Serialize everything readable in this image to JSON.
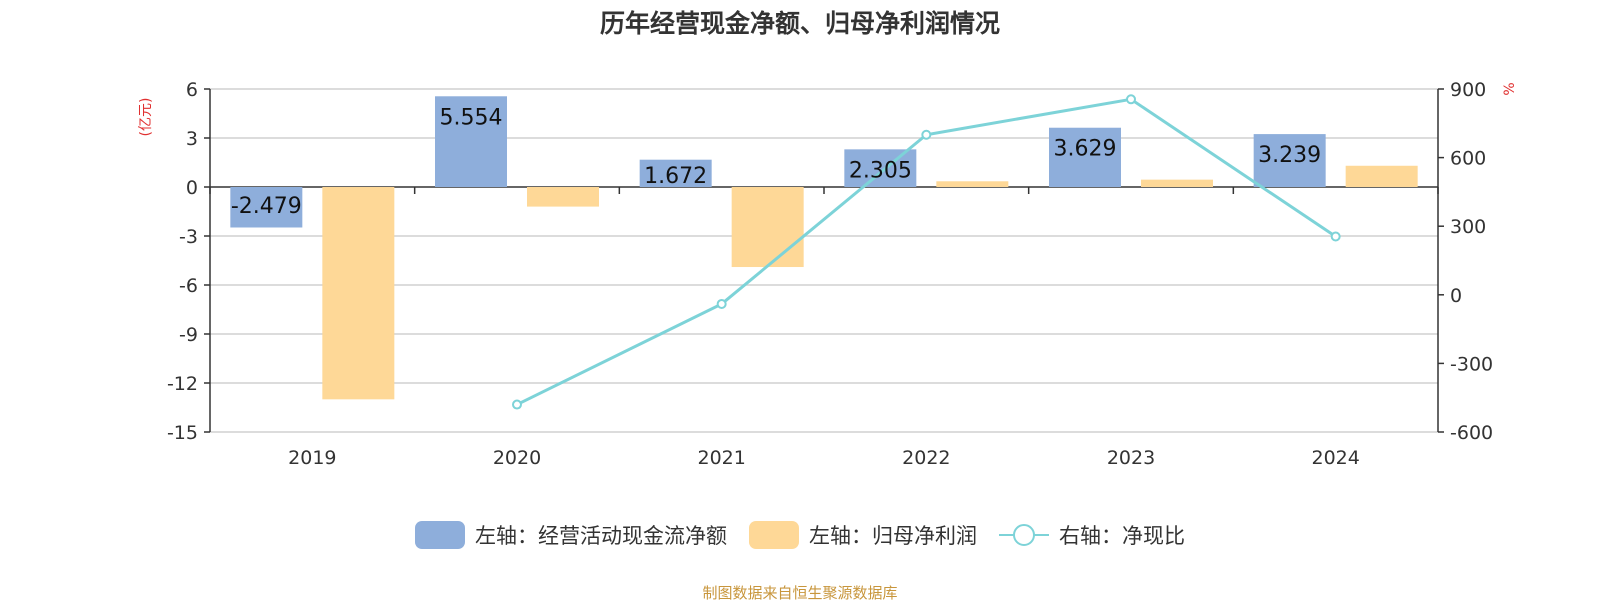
{
  "title": "历年经营现金净额、归母净利润情况",
  "source": "制图数据来自恒生聚源数据库",
  "colors": {
    "cash": "#8eaedb",
    "profit": "#fed897",
    "ratio": "#7dd3d8",
    "unit": "#e03030"
  },
  "legend": {
    "cash": "左轴：经营活动现金流净额",
    "profit": "左轴：归母净利润",
    "ratio": "右轴：净现比"
  },
  "chart_data": {
    "type": "bar",
    "categories": [
      "2019",
      "2020",
      "2021",
      "2022",
      "2023",
      "2024"
    ],
    "left_axis": {
      "unit": "(亿元)",
      "ylim": [
        -15,
        6
      ],
      "ticks": [
        6,
        3,
        0,
        -3,
        -6,
        -9,
        -12,
        -15
      ]
    },
    "right_axis": {
      "unit": "%",
      "ylim": [
        -600,
        900
      ],
      "ticks": [
        900,
        600,
        300,
        0,
        -300,
        -600
      ]
    },
    "series": [
      {
        "name": "左轴：经营活动现金流净额",
        "type": "bar",
        "axis": "left",
        "values": [
          -2.479,
          5.554,
          1.672,
          2.305,
          3.629,
          3.239
        ],
        "labels": [
          "-2.479",
          "5.554",
          "1.672",
          "2.305",
          "3.629",
          "3.239"
        ]
      },
      {
        "name": "左轴：归母净利润",
        "type": "bar",
        "axis": "left",
        "values": [
          -13.0,
          -1.2,
          -4.9,
          0.35,
          0.45,
          1.3
        ]
      },
      {
        "name": "右轴：净现比",
        "type": "line",
        "axis": "right",
        "values": [
          null,
          -480,
          -40,
          700,
          855,
          255
        ]
      }
    ],
    "grid": true,
    "legend_position": "bottom"
  }
}
